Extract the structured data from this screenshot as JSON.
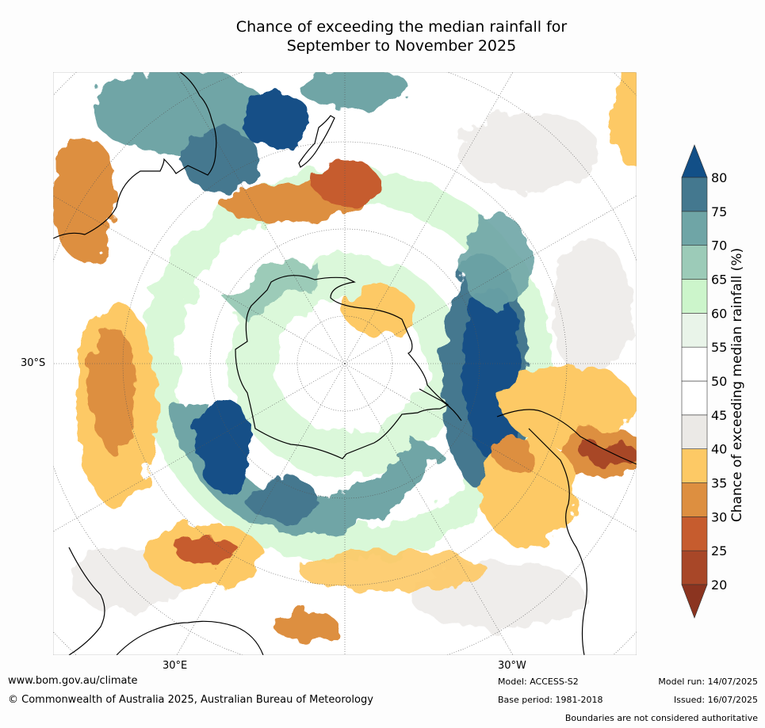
{
  "title_line1": "Chance of exceeding the median rainfall for",
  "title_line2": "September to November 2025",
  "map": {
    "projection": "south-polar-stereographic",
    "lat_label": "30°S",
    "lon_labels": [
      "30°E",
      "30°W"
    ],
    "colors": {
      "wet_extreme": "#124f87",
      "wet_75": "#44788f",
      "wet_70": "#6fa5a6",
      "wet_65": "#9ccbb8",
      "wet_60": "#ccf5cb",
      "near_55": "#e9f4e9",
      "near_50": "#ffffff",
      "near_45": "#ebe9e6",
      "dry_40": "#fdc965",
      "dry_35": "#dd8f40",
      "dry_30": "#c65c2e",
      "dry_25": "#a84728",
      "dry_extreme": "#8b3420",
      "land_outline": "#000000"
    }
  },
  "colorbar": {
    "title": "Chance of exceeding median rainfall (%)",
    "ticks": [
      "20",
      "25",
      "30",
      "35",
      "40",
      "45",
      "50",
      "55",
      "60",
      "65",
      "70",
      "75",
      "80"
    ]
  },
  "footer": {
    "url": "www.bom.gov.au/climate",
    "copyright": "© Commonwealth of Australia 2025, Australian Bureau of Meteorology",
    "model": "Model: ACCESS-S2",
    "base_period": "Base period: 1981-2018",
    "model_run": "Model run: 14/07/2025",
    "issued": "Issued: 16/07/2025",
    "disclaimer": "Boundaries are not considered authoritative"
  }
}
